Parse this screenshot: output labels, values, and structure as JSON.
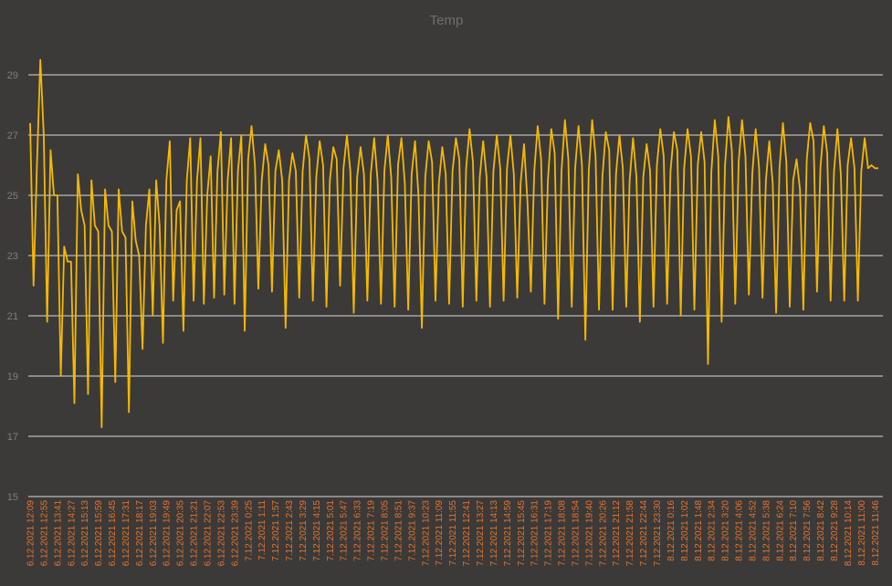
{
  "chart_data": {
    "type": "line",
    "title": "Temp",
    "color": "#f5b800",
    "label_color": "#e8732a",
    "grid": true,
    "ylim": [
      15,
      30
    ],
    "yticks": [
      15,
      17,
      19,
      21,
      23,
      25,
      27,
      29
    ],
    "categories": [
      "6.12.2021 12:09",
      null,
      null,
      null,
      "6.12.2021 12:55",
      null,
      null,
      null,
      "6.12.2021 13:41",
      null,
      null,
      null,
      "6.12.2021 14:27",
      null,
      null,
      null,
      "6.12.2021 15:13",
      null,
      null,
      null,
      "6.12.2021 15:59",
      null,
      null,
      null,
      "6.12.2021 16:45",
      null,
      null,
      null,
      "6.12.2021 17:31",
      null,
      null,
      null,
      "6.12.2021 18:17",
      null,
      null,
      null,
      "6.12.2021 19:03",
      null,
      null,
      null,
      "6.12.2021 19:49",
      null,
      null,
      null,
      "6.12.2021 20:35",
      null,
      null,
      null,
      "6.12.2021 21:21",
      null,
      null,
      null,
      "6.12.2021 22:07",
      null,
      null,
      null,
      "6.12.2021 22:53",
      null,
      null,
      null,
      "6.12.2021 23:39",
      null,
      null,
      null,
      "7.12.2021 0:25",
      null,
      null,
      null,
      "7.12.2021 1:11",
      null,
      null,
      null,
      "7.12.2021 1:57",
      null,
      null,
      null,
      "7.12.2021 2:43",
      null,
      null,
      null,
      "7.12.2021 3:29",
      null,
      null,
      null,
      "7.12.2021 4:15",
      null,
      null,
      null,
      "7.12.2021 5:01",
      null,
      null,
      null,
      "7.12.2021 5:47",
      null,
      null,
      null,
      "7.12.2021 6:33",
      null,
      null,
      null,
      "7.12.2021 7:19",
      null,
      null,
      null,
      "7.12.2021 8:05",
      null,
      null,
      null,
      "7.12.2021 8:51",
      null,
      null,
      null,
      "7.12.2021 9:37",
      null,
      null,
      null,
      "7.12.2021 10:23",
      null,
      null,
      null,
      "7.12.2021 11:09",
      null,
      null,
      null,
      "7.12.2021 11:55",
      null,
      null,
      null,
      "7.12.2021 12:41",
      null,
      null,
      null,
      "7.12.2021 13:27",
      null,
      null,
      null,
      "7.12.2021 14:13",
      null,
      null,
      null,
      "7.12.2021 14:59",
      null,
      null,
      null,
      "7.12.2021 15:45",
      null,
      null,
      null,
      "7.12.2021 16:31",
      null,
      null,
      null,
      "7.12.2021 17:19",
      null,
      null,
      null,
      "7.12.2021 18:08",
      null,
      null,
      null,
      "7.12.2021 18:54",
      null,
      null,
      null,
      "7.12.2021 19:40",
      null,
      null,
      null,
      "7.12.2021 20:26",
      null,
      null,
      null,
      "7.12.2021 21:12",
      null,
      null,
      null,
      "7.12.2021 21:58",
      null,
      null,
      null,
      "7.12.2021 22:44",
      null,
      null,
      null,
      "7.12.2021 23:30",
      null,
      null,
      null,
      "8.12.2021 0:16",
      null,
      null,
      null,
      "8.12.2021 1:02",
      null,
      null,
      null,
      "8.12.2021 1:48",
      null,
      null,
      null,
      "8.12.2021 2:34",
      null,
      null,
      null,
      "8.12.2021 3:20",
      null,
      null,
      null,
      "8.12.2021 4:06",
      null,
      null,
      null,
      "8.12.2021 4:52",
      null,
      null,
      null,
      "8.12.2021 5:38",
      null,
      null,
      null,
      "8.12.2021 6:24",
      null,
      null,
      null,
      "8.12.2021 7:10",
      null,
      null,
      null,
      "8.12.2021 7:56",
      null,
      null,
      null,
      "8.12.2021 8:42",
      null,
      null,
      null,
      "8.12.2021 9:28",
      null,
      null,
      null,
      "8.12.2021 10:14",
      null,
      null,
      null,
      "8.12.2021 11:00",
      null,
      null,
      null,
      "8.12.2021 11:46",
      null
    ],
    "values": [
      27.4,
      22,
      26,
      29.5,
      27,
      20.8,
      26.5,
      25,
      25,
      19,
      23.3,
      22.8,
      22.8,
      18.1,
      25.7,
      24.5,
      24,
      18.4,
      25.5,
      24,
      23.8,
      17.3,
      25.2,
      24,
      23.8,
      18.8,
      25.2,
      23.8,
      23.6,
      17.8,
      24.8,
      23.5,
      23,
      19.9,
      24,
      25.2,
      21,
      25.5,
      24,
      20.1,
      25.5,
      26.8,
      21.5,
      24.5,
      24.8,
      20.5,
      25.5,
      26.9,
      21.5,
      25.5,
      26.9,
      21.4,
      25,
      26.3,
      21.6,
      25.8,
      27.1,
      21.7,
      25.5,
      26.9,
      21.4,
      25.8,
      27,
      20.5,
      26.2,
      27.3,
      26,
      21.9,
      25.5,
      26.7,
      26,
      21.8,
      25.8,
      26.5,
      25.5,
      20.6,
      25.5,
      26.4,
      25.8,
      21.6,
      25.8,
      27,
      26.2,
      21.5,
      25.6,
      26.8,
      26,
      21.3,
      25.5,
      26.6,
      26.2,
      22,
      25.9,
      27,
      25.8,
      21.1,
      25.6,
      26.6,
      25.7,
      21.5,
      25.7,
      26.9,
      25.5,
      21.4,
      25.8,
      27,
      25.6,
      21.3,
      26,
      26.9,
      25.4,
      21.2,
      25.7,
      26.8,
      25,
      20.6,
      25.6,
      26.8,
      26.1,
      21.5,
      25.4,
      26.6,
      25.7,
      21.4,
      25.8,
      26.9,
      26.2,
      21.3,
      25.9,
      27.2,
      26.1,
      21.5,
      25.6,
      26.8,
      25.6,
      21.3,
      25.8,
      27,
      25.9,
      21.5,
      25.9,
      27,
      25.7,
      21.6,
      25.4,
      26.7,
      24.8,
      21.8,
      25.8,
      27.3,
      26.2,
      21.4,
      25.5,
      27.2,
      26.4,
      20.9,
      25.8,
      27.5,
      26.2,
      21.3,
      25.9,
      27.3,
      26,
      20.2,
      25.8,
      27.5,
      26.3,
      21.2,
      25.6,
      27.1,
      26.5,
      21.2,
      25.7,
      27,
      25.9,
      21.3,
      25.5,
      26.9,
      25.6,
      20.8,
      25.6,
      26.7,
      25.8,
      21.3,
      26,
      27.2,
      26.3,
      21.4,
      25.8,
      27.1,
      26.5,
      21,
      25.9,
      27.2,
      26.3,
      21.2,
      26,
      27.1,
      26.1,
      19.4,
      25.8,
      27.5,
      26.3,
      20.8,
      26,
      27.6,
      26.5,
      21.4,
      26.1,
      27.5,
      26.3,
      21.7,
      25.7,
      27.2,
      25.9,
      21.6,
      25.5,
      26.8,
      25.4,
      21.1,
      25.9,
      27.4,
      26.1,
      21.3,
      25.5,
      26.2,
      25.2,
      21.2,
      26.2,
      27.4,
      26.8,
      21.8,
      25.9,
      27.3,
      26.4,
      21.5,
      25.8,
      27.2,
      25.7,
      21.5,
      26,
      26.9,
      25.9,
      21.5,
      25.8,
      26.9,
      25.9,
      26,
      25.9,
      25.9
    ]
  }
}
